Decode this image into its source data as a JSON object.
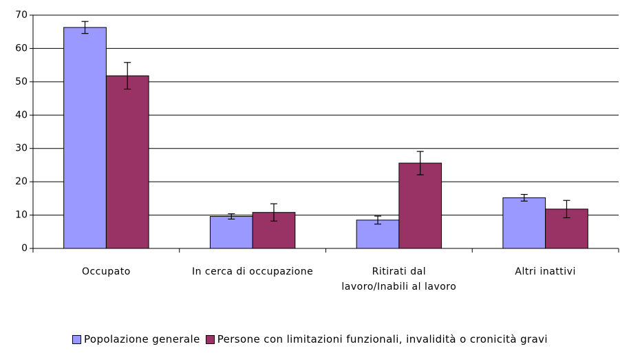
{
  "chart_data": {
    "type": "bar",
    "categories": [
      "Occupato",
      "In cerca di occupazione",
      "Ritirati dal lavoro/Inabili al lavoro",
      "Altri inattivi"
    ],
    "series": [
      {
        "name": "Popolazione generale",
        "color": "#9999ff",
        "values": [
          66.3,
          9.6,
          8.5,
          15.2
        ],
        "errors": [
          1.8,
          0.8,
          1.2,
          1.0
        ]
      },
      {
        "name": "Persone con limitazioni funzionali, invalidità o cronicità gravi",
        "color": "#993366",
        "values": [
          51.8,
          10.8,
          25.6,
          11.8
        ],
        "errors": [
          4.0,
          2.6,
          3.5,
          2.6
        ]
      }
    ],
    "ylim": [
      0,
      70
    ],
    "yticks": [
      0,
      10,
      20,
      30,
      40,
      50,
      60,
      70
    ],
    "grid": true,
    "legend": "bottom"
  }
}
